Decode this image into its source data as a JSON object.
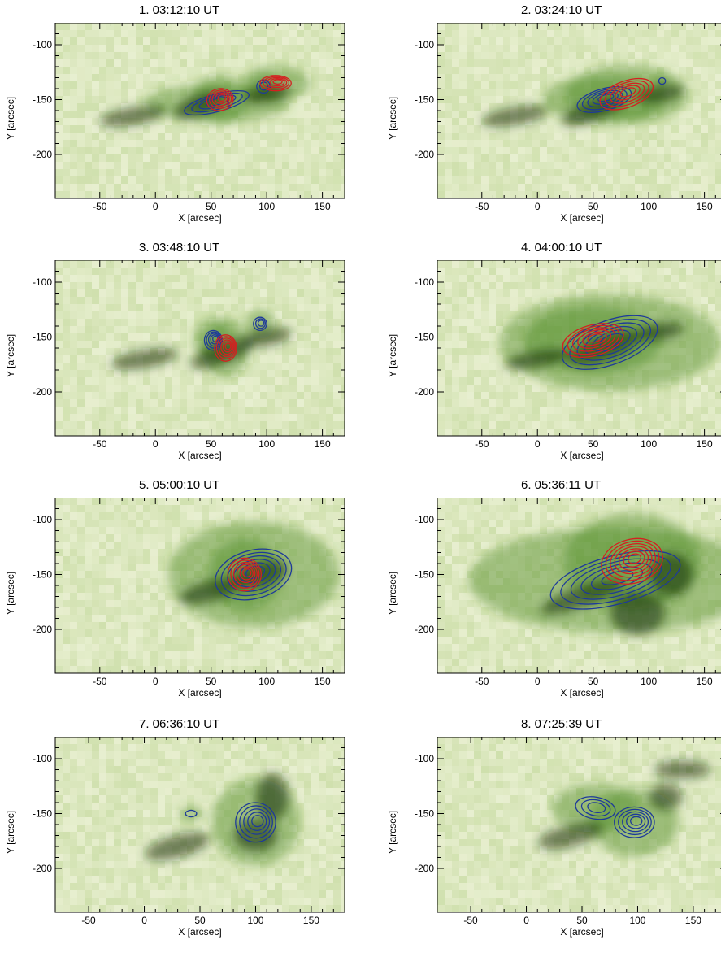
{
  "figure": {
    "colors": {
      "background_map_light": "#eef3d8",
      "background_map_dark": "#0e2a0a",
      "contour_low_energy": "#1e3a9a",
      "contour_high_energy": "#d42020"
    }
  },
  "chart_data": [
    {
      "type": "heatmap",
      "title": "1.   03:12:10 UT",
      "xlabel": "X [arcsec]",
      "ylabel": "Y [arcsec]",
      "xlim": [
        -90,
        170
      ],
      "ylim": [
        -240,
        -80
      ],
      "xticks": [
        "-50",
        "0",
        "50",
        "100",
        "150"
      ],
      "yticks": [
        "-100",
        "-150",
        "-200"
      ],
      "contours": [
        {
          "color": "blue",
          "center": [
            55,
            -153
          ],
          "rx": 30,
          "ry": 8,
          "levels": 4,
          "tilt": -15
        },
        {
          "color": "blue",
          "center": [
            97,
            -138
          ],
          "rx": 6,
          "ry": 6,
          "levels": 2,
          "tilt": 0
        },
        {
          "color": "red",
          "center": [
            58,
            -150
          ],
          "rx": 12,
          "ry": 10,
          "levels": 5,
          "tilt": -10
        },
        {
          "color": "red",
          "center": [
            108,
            -135
          ],
          "rx": 14,
          "ry": 7,
          "levels": 5,
          "tilt": 0
        }
      ],
      "dark_features": [
        [
          -20,
          -165,
          30,
          8,
          -10
        ],
        [
          40,
          -155,
          25,
          10,
          -20
        ],
        [
          100,
          -145,
          22,
          8,
          -10
        ]
      ]
    },
    {
      "type": "heatmap",
      "title": "2.   03:24:10 UT",
      "xlabel": "X [arcsec]",
      "ylabel": "Y [arcsec]",
      "xlim": [
        -90,
        170
      ],
      "ylim": [
        -240,
        -80
      ],
      "xticks": [
        "-50",
        "0",
        "50",
        "100",
        "150"
      ],
      "yticks": [
        "-100",
        "-150",
        "-200"
      ],
      "contours": [
        {
          "color": "blue",
          "center": [
            60,
            -150
          ],
          "rx": 25,
          "ry": 10,
          "levels": 5,
          "tilt": -15
        },
        {
          "color": "blue",
          "center": [
            112,
            -133
          ],
          "rx": 3,
          "ry": 3,
          "levels": 1,
          "tilt": 0
        },
        {
          "color": "red",
          "center": [
            80,
            -145
          ],
          "rx": 25,
          "ry": 12,
          "levels": 5,
          "tilt": -20
        }
      ],
      "dark_features": [
        [
          -20,
          -165,
          30,
          8,
          -10
        ],
        [
          50,
          -160,
          30,
          10,
          -20
        ],
        [
          110,
          -145,
          22,
          8,
          -10
        ]
      ]
    },
    {
      "type": "heatmap",
      "title": "3.   03:48:10 UT",
      "xlabel": "X [arcsec]",
      "ylabel": "Y [arcsec]",
      "xlim": [
        -90,
        170
      ],
      "ylim": [
        -240,
        -80
      ],
      "xticks": [
        "-50",
        "0",
        "50",
        "100",
        "150"
      ],
      "yticks": [
        "-100",
        "-150",
        "-200"
      ],
      "contours": [
        {
          "color": "blue",
          "center": [
            52,
            -153
          ],
          "rx": 8,
          "ry": 9,
          "levels": 5,
          "tilt": 0
        },
        {
          "color": "blue",
          "center": [
            94,
            -138
          ],
          "rx": 6,
          "ry": 6,
          "levels": 3,
          "tilt": 0
        },
        {
          "color": "red",
          "center": [
            63,
            -160
          ],
          "rx": 10,
          "ry": 12,
          "levels": 6,
          "tilt": 0
        }
      ],
      "dark_features": [
        [
          -10,
          -170,
          30,
          8,
          -10
        ],
        [
          60,
          -165,
          30,
          10,
          -20
        ],
        [
          100,
          -150,
          22,
          8,
          -10
        ]
      ]
    },
    {
      "type": "heatmap",
      "title": "4.   04:00:10 UT",
      "xlabel": "X [arcsec]",
      "ylabel": "Y [arcsec]",
      "xlim": [
        -90,
        170
      ],
      "ylim": [
        -240,
        -80
      ],
      "xticks": [
        "-50",
        "0",
        "50",
        "100",
        "150"
      ],
      "yticks": [
        "-100",
        "-150",
        "-200"
      ],
      "contours": [
        {
          "color": "blue",
          "center": [
            65,
            -155
          ],
          "rx": 45,
          "ry": 20,
          "levels": 6,
          "tilt": -20
        },
        {
          "color": "red",
          "center": [
            50,
            -153
          ],
          "rx": 28,
          "ry": 14,
          "levels": 6,
          "tilt": -15
        }
      ],
      "dark_features": [
        [
          0,
          -170,
          30,
          8,
          -10
        ],
        [
          60,
          -160,
          35,
          12,
          -20
        ],
        [
          110,
          -145,
          22,
          8,
          -10
        ]
      ]
    },
    {
      "type": "heatmap",
      "title": "5.   05:00:10 UT",
      "xlabel": "X [arcsec]",
      "ylabel": "Y [arcsec]",
      "xlim": [
        -90,
        170
      ],
      "ylim": [
        -240,
        -80
      ],
      "xticks": [
        "-50",
        "0",
        "50",
        "100",
        "150"
      ],
      "yticks": [
        "-100",
        "-150",
        "-200"
      ],
      "contours": [
        {
          "color": "blue",
          "center": [
            88,
            -150
          ],
          "rx": 35,
          "ry": 22,
          "levels": 6,
          "tilt": -15
        },
        {
          "color": "red",
          "center": [
            80,
            -150
          ],
          "rx": 15,
          "ry": 15,
          "levels": 6,
          "tilt": 0
        }
      ],
      "dark_features": [
        [
          50,
          -165,
          30,
          10,
          -15
        ],
        [
          95,
          -150,
          25,
          12,
          -15
        ]
      ]
    },
    {
      "type": "heatmap",
      "title": "6.   05:36:11 UT",
      "xlabel": "X [arcsec]",
      "ylabel": "Y [arcsec]",
      "xlim": [
        -90,
        170
      ],
      "ylim": [
        -240,
        -80
      ],
      "xticks": [
        "-50",
        "0",
        "50",
        "100",
        "150"
      ],
      "yticks": [
        "-100",
        "-150",
        "-200"
      ],
      "contours": [
        {
          "color": "blue",
          "center": [
            70,
            -155
          ],
          "rx": 60,
          "ry": 22,
          "levels": 6,
          "tilt": -15
        },
        {
          "color": "red",
          "center": [
            85,
            -138
          ],
          "rx": 28,
          "ry": 20,
          "levels": 7,
          "tilt": -15
        }
      ],
      "dark_features": [
        [
          40,
          -170,
          40,
          10,
          -20
        ],
        [
          90,
          -185,
          25,
          20,
          0
        ],
        [
          120,
          -150,
          20,
          20,
          0
        ]
      ]
    },
    {
      "type": "heatmap",
      "title": "7.   06:36:10 UT",
      "xlabel": "X [arcsec]",
      "ylabel": "Y [arcsec]",
      "xlim": [
        -80,
        180
      ],
      "ylim": [
        -240,
        -80
      ],
      "xticks": [
        "-50",
        "0",
        "50",
        "100",
        "150"
      ],
      "yticks": [
        "-100",
        "-150",
        "-200"
      ],
      "contours": [
        {
          "color": "blue",
          "center": [
            100,
            -158
          ],
          "rx": 18,
          "ry": 18,
          "levels": 5,
          "tilt": 0
        },
        {
          "color": "blue",
          "center": [
            42,
            -150
          ],
          "rx": 5,
          "ry": 3,
          "levels": 1,
          "tilt": 0
        }
      ],
      "dark_features": [
        [
          115,
          -135,
          15,
          22,
          0
        ],
        [
          100,
          -170,
          20,
          15,
          0
        ],
        [
          30,
          -180,
          30,
          10,
          -15
        ]
      ]
    },
    {
      "type": "heatmap",
      "title": "8.   07:25:39 UT",
      "xlabel": "X [arcsec]",
      "ylabel": "Y [arcsec]",
      "xlim": [
        -80,
        180
      ],
      "ylim": [
        -240,
        -80
      ],
      "xticks": [
        "-50",
        "0",
        "50",
        "100",
        "150"
      ],
      "yticks": [
        "-100",
        "-150",
        "-200"
      ],
      "contours": [
        {
          "color": "blue",
          "center": [
            62,
            -145
          ],
          "rx": 18,
          "ry": 10,
          "levels": 3,
          "tilt": 10
        },
        {
          "color": "blue",
          "center": [
            97,
            -158
          ],
          "rx": 18,
          "ry": 14,
          "levels": 5,
          "tilt": 0
        }
      ],
      "dark_features": [
        [
          125,
          -135,
          15,
          12,
          0
        ],
        [
          140,
          -110,
          25,
          8,
          0
        ],
        [
          40,
          -170,
          30,
          10,
          -15
        ]
      ]
    }
  ]
}
